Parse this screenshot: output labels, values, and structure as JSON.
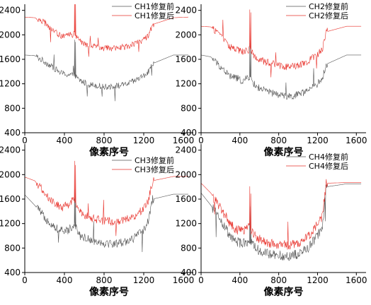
{
  "chart_data": [
    {
      "type": "line",
      "id": "ch1",
      "xlabel": "像素序号",
      "ylabel": "",
      "xlim": [
        0,
        1700
      ],
      "ylim": [
        400,
        2500
      ],
      "xticks": [
        0,
        400,
        800,
        1200,
        1600
      ],
      "yticks": [
        400,
        800,
        1200,
        1600,
        2000,
        2400
      ],
      "xtick_labels": [
        "0",
        "400",
        "800",
        "1200",
        "1600"
      ],
      "ytick_labels": [
        "400",
        "800",
        "1200",
        "1600",
        "2000",
        "2400"
      ],
      "legend_position": "top-right",
      "grid": false,
      "series": [
        {
          "name": "CH1修复前",
          "color": "#555555",
          "profile": [
            [
              0,
              1670
            ],
            [
              100,
              1660
            ],
            [
              200,
              1560
            ],
            [
              300,
              1450
            ],
            [
              360,
              1380
            ],
            [
              430,
              1350
            ],
            [
              500,
              1330
            ],
            [
              560,
              1250
            ],
            [
              640,
              1190
            ],
            [
              700,
              1180
            ],
            [
              800,
              1150
            ],
            [
              900,
              1160
            ],
            [
              1000,
              1180
            ],
            [
              1100,
              1240
            ],
            [
              1200,
              1330
            ],
            [
              1250,
              1400
            ],
            [
              1290,
              1530
            ],
            [
              1500,
              1670
            ],
            [
              1650,
              1670
            ]
          ],
          "noise": 50
        },
        {
          "name": "CH1修复后",
          "color": "#e8312a",
          "profile": [
            [
              0,
              2290
            ],
            [
              100,
              2280
            ],
            [
              200,
              2200
            ],
            [
              300,
              2050
            ],
            [
              360,
              1980
            ],
            [
              430,
              1990
            ],
            [
              500,
              2010
            ],
            [
              560,
              1890
            ],
            [
              640,
              1830
            ],
            [
              700,
              1810
            ],
            [
              800,
              1780
            ],
            [
              900,
              1790
            ],
            [
              1000,
              1800
            ],
            [
              1100,
              1850
            ],
            [
              1200,
              1920
            ],
            [
              1250,
              1980
            ],
            [
              1290,
              2170
            ],
            [
              1500,
              2280
            ],
            [
              1650,
              2290
            ]
          ],
          "noise": 50
        }
      ]
    },
    {
      "type": "line",
      "id": "ch2",
      "xlabel": "像素序号",
      "ylabel": "",
      "xlim": [
        0,
        1700
      ],
      "ylim": [
        400,
        2500
      ],
      "xticks": [
        0,
        400,
        800,
        1200,
        1600
      ],
      "yticks": [
        400,
        800,
        1200,
        1600,
        2000,
        2400
      ],
      "xtick_labels": [
        "0",
        "400",
        "800",
        "1200",
        "1600"
      ],
      "ytick_labels": [
        "400",
        "800",
        "1200",
        "1600",
        "2000",
        "2400"
      ],
      "legend_position": "top-right",
      "grid": false,
      "series": [
        {
          "name": "CH2修复前",
          "color": "#555555",
          "profile": [
            [
              0,
              1670
            ],
            [
              100,
              1640
            ],
            [
              200,
              1480
            ],
            [
              300,
              1320
            ],
            [
              360,
              1300
            ],
            [
              430,
              1240
            ],
            [
              500,
              1320
            ],
            [
              560,
              1160
            ],
            [
              640,
              1100
            ],
            [
              700,
              1060
            ],
            [
              800,
              1020
            ],
            [
              900,
              1000
            ],
            [
              1000,
              1020
            ],
            [
              1100,
              1090
            ],
            [
              1200,
              1200
            ],
            [
              1250,
              1280
            ],
            [
              1290,
              1520
            ],
            [
              1500,
              1670
            ],
            [
              1650,
              1670
            ]
          ],
          "noise": 60
        },
        {
          "name": "CH2修复后",
          "color": "#e8312a",
          "profile": [
            [
              0,
              2140
            ],
            [
              100,
              2130
            ],
            [
              200,
              2000
            ],
            [
              300,
              1800
            ],
            [
              360,
              1760
            ],
            [
              430,
              1720
            ],
            [
              500,
              1760
            ],
            [
              560,
              1640
            ],
            [
              640,
              1570
            ],
            [
              700,
              1540
            ],
            [
              800,
              1500
            ],
            [
              900,
              1480
            ],
            [
              1000,
              1500
            ],
            [
              1100,
              1570
            ],
            [
              1200,
              1680
            ],
            [
              1250,
              1760
            ],
            [
              1290,
              2050
            ],
            [
              1500,
              2140
            ],
            [
              1650,
              2140
            ]
          ],
          "noise": 60
        }
      ]
    },
    {
      "type": "line",
      "id": "ch3",
      "xlabel": "像素序号",
      "ylabel": "",
      "xlim": [
        0,
        1700
      ],
      "ylim": [
        400,
        2500
      ],
      "xticks": [
        0,
        400,
        800,
        1200,
        1600
      ],
      "yticks": [
        400,
        800,
        1200,
        1600,
        2000,
        2400
      ],
      "xtick_labels": [
        "0",
        "400",
        "800",
        "1200",
        "1600"
      ],
      "ytick_labels": [
        "400",
        "800",
        "1200",
        "1600",
        "2000",
        "2400"
      ],
      "legend_position": "top-right",
      "grid": false,
      "series": [
        {
          "name": "CH3修复前",
          "color": "#555555",
          "profile": [
            [
              0,
              1670
            ],
            [
              100,
              1500
            ],
            [
              200,
              1300
            ],
            [
              300,
              1150
            ],
            [
              360,
              1080
            ],
            [
              430,
              1080
            ],
            [
              500,
              1200
            ],
            [
              560,
              1000
            ],
            [
              640,
              950
            ],
            [
              700,
              920
            ],
            [
              800,
              880
            ],
            [
              900,
              870
            ],
            [
              1000,
              900
            ],
            [
              1100,
              960
            ],
            [
              1200,
              1100
            ],
            [
              1250,
              1250
            ],
            [
              1290,
              1600
            ],
            [
              1500,
              1680
            ],
            [
              1650,
              1680
            ]
          ],
          "noise": 70
        },
        {
          "name": "CH3修复后",
          "color": "#e8312a",
          "profile": [
            [
              0,
              1960
            ],
            [
              100,
              1900
            ],
            [
              200,
              1700
            ],
            [
              300,
              1540
            ],
            [
              360,
              1460
            ],
            [
              430,
              1500
            ],
            [
              500,
              1600
            ],
            [
              560,
              1380
            ],
            [
              640,
              1310
            ],
            [
              700,
              1280
            ],
            [
              800,
              1240
            ],
            [
              900,
              1230
            ],
            [
              1000,
              1260
            ],
            [
              1100,
              1320
            ],
            [
              1200,
              1450
            ],
            [
              1250,
              1600
            ],
            [
              1290,
              1900
            ],
            [
              1500,
              1970
            ],
            [
              1650,
              1970
            ]
          ],
          "noise": 70
        }
      ]
    },
    {
      "type": "line",
      "id": "ch4",
      "xlabel": "像素序号",
      "ylabel": "",
      "xlim": [
        0,
        1700
      ],
      "ylim": [
        400,
        2500
      ],
      "xticks": [
        0,
        400,
        800,
        1200,
        1600
      ],
      "yticks": [
        400,
        800,
        1200,
        1600,
        2000,
        2400
      ],
      "xtick_labels": [
        "0",
        "400",
        "800",
        "1200",
        "1600"
      ],
      "ytick_labels": [
        "400",
        "800",
        "1200",
        "1600",
        "2000",
        "2400"
      ],
      "legend_position": "top-right",
      "grid": false,
      "series": [
        {
          "name": "CH4修复前",
          "color": "#555555",
          "profile": [
            [
              0,
              1700
            ],
            [
              100,
              1500
            ],
            [
              200,
              1250
            ],
            [
              300,
              1000
            ],
            [
              360,
              900
            ],
            [
              430,
              880
            ],
            [
              500,
              920
            ],
            [
              560,
              800
            ],
            [
              640,
              730
            ],
            [
              700,
              700
            ],
            [
              800,
              680
            ],
            [
              900,
              670
            ],
            [
              1000,
              700
            ],
            [
              1100,
              800
            ],
            [
              1200,
              1000
            ],
            [
              1250,
              1150
            ],
            [
              1290,
              1800
            ],
            [
              1500,
              1850
            ],
            [
              1650,
              1850
            ]
          ],
          "noise": 80
        },
        {
          "name": "CH4修复后",
          "color": "#e8312a",
          "profile": [
            [
              0,
              1860
            ],
            [
              100,
              1700
            ],
            [
              200,
              1450
            ],
            [
              300,
              1200
            ],
            [
              360,
              1100
            ],
            [
              430,
              1080
            ],
            [
              500,
              1130
            ],
            [
              560,
              990
            ],
            [
              640,
              920
            ],
            [
              700,
              880
            ],
            [
              800,
              860
            ],
            [
              900,
              850
            ],
            [
              1000,
              880
            ],
            [
              1100,
              980
            ],
            [
              1200,
              1180
            ],
            [
              1250,
              1320
            ],
            [
              1290,
              1860
            ],
            [
              1500,
              1870
            ],
            [
              1650,
              1870
            ]
          ],
          "noise": 80
        }
      ]
    }
  ]
}
